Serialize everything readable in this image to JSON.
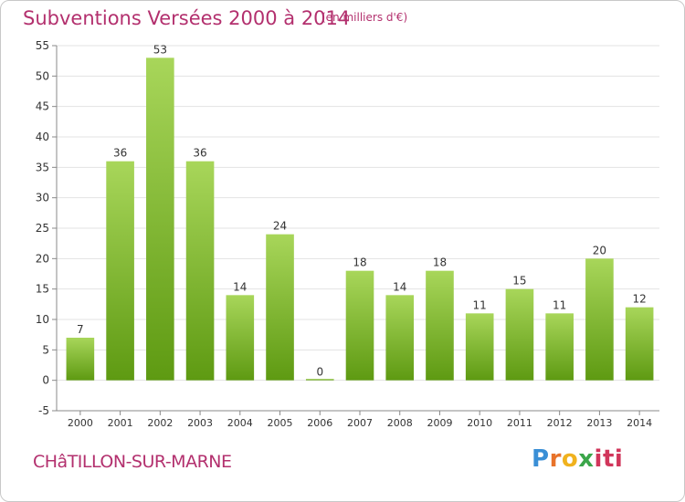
{
  "header": {
    "title": "Subventions Versées 2000 à 2014",
    "unit_note": "(en milliers d'€)"
  },
  "footer": {
    "commune": "CHâTILLON-SUR-MARNE",
    "logo_parts": [
      "P",
      "r",
      "o",
      "x",
      "iti"
    ]
  },
  "colors": {
    "title": "#b3306e",
    "bar_light": "#a8d65a",
    "bar_dark": "#5e9a12",
    "grid": "#e3e3e3",
    "axis_text": "#333333"
  },
  "chart_data": {
    "type": "bar",
    "title": "Subventions Versées 2000 à 2014",
    "subtitle": "(en milliers d'€)",
    "xlabel": "",
    "ylabel": "",
    "categories": [
      "2000",
      "2001",
      "2002",
      "2003",
      "2004",
      "2005",
      "2006",
      "2007",
      "2008",
      "2009",
      "2010",
      "2011",
      "2012",
      "2013",
      "2014"
    ],
    "values": [
      7,
      36,
      53,
      36,
      14,
      24,
      0,
      18,
      14,
      18,
      11,
      15,
      11,
      20,
      12
    ],
    "ylim": [
      -5,
      55
    ],
    "yticks": [
      -5,
      0,
      5,
      10,
      15,
      20,
      25,
      30,
      35,
      40,
      45,
      50,
      55
    ],
    "grid": true,
    "legend": "none"
  }
}
